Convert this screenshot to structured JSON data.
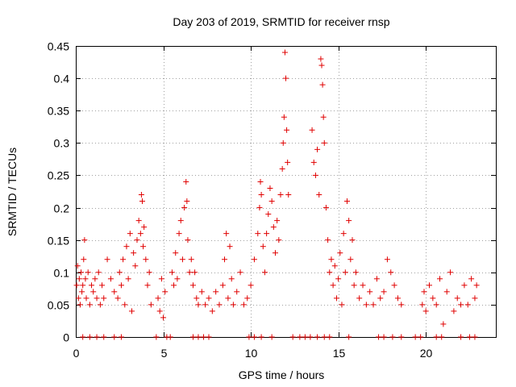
{
  "chart_data": {
    "type": "scatter",
    "title": "Day 203 of 2019, SRMTID for receiver rnsp",
    "xlabel": "GPS time / hours",
    "ylabel": "SRMTID / TECUs",
    "xlim": [
      0,
      24
    ],
    "ylim": [
      0,
      0.45
    ],
    "xticks": [
      0,
      5,
      10,
      15,
      20
    ],
    "xtick_labels": [
      "0",
      "5",
      "10",
      "15",
      "20"
    ],
    "yticks": [
      0,
      0.05,
      0.1,
      0.15,
      0.2,
      0.25,
      0.3,
      0.35,
      0.4,
      0.45
    ],
    "ytick_labels": [
      "0",
      "0.05",
      "0.1",
      "0.15",
      "0.2",
      "0.25",
      "0.3",
      "0.35",
      "0.4",
      "0.45"
    ],
    "grid": true,
    "marker": "+",
    "color": "#e00000",
    "series": [
      {
        "name": "SRMTID",
        "points": [
          [
            0.05,
            0.08
          ],
          [
            0.1,
            0.11
          ],
          [
            0.15,
            0.06
          ],
          [
            0.2,
            0.09
          ],
          [
            0.25,
            0.05
          ],
          [
            0.3,
            0.1
          ],
          [
            0.35,
            0.07
          ],
          [
            0.4,
            0.08
          ],
          [
            0.45,
            0.12
          ],
          [
            0.5,
            0.15
          ],
          [
            0.55,
            0.09
          ],
          [
            0.6,
            0.06
          ],
          [
            0.7,
            0.1
          ],
          [
            0.8,
            0.05
          ],
          [
            0.9,
            0.08
          ],
          [
            1.0,
            0.07
          ],
          [
            1.1,
            0.09
          ],
          [
            1.2,
            0.06
          ],
          [
            1.3,
            0.1
          ],
          [
            1.4,
            0.05
          ],
          [
            1.5,
            0.08
          ],
          [
            1.6,
            0.06
          ],
          [
            1.8,
            0.12
          ],
          [
            2.0,
            0.09
          ],
          [
            2.2,
            0.07
          ],
          [
            2.4,
            0.06
          ],
          [
            2.5,
            0.1
          ],
          [
            2.6,
            0.08
          ],
          [
            2.7,
            0.12
          ],
          [
            2.8,
            0.05
          ],
          [
            2.9,
            0.14
          ],
          [
            3.0,
            0.09
          ],
          [
            3.1,
            0.16
          ],
          [
            3.2,
            0.04
          ],
          [
            3.3,
            0.13
          ],
          [
            3.4,
            0.11
          ],
          [
            3.5,
            0.15
          ],
          [
            3.6,
            0.18
          ],
          [
            3.7,
            0.16
          ],
          [
            3.75,
            0.22
          ],
          [
            3.8,
            0.21
          ],
          [
            3.85,
            0.14
          ],
          [
            3.9,
            0.17
          ],
          [
            4.0,
            0.12
          ],
          [
            4.1,
            0.08
          ],
          [
            4.2,
            0.1
          ],
          [
            4.3,
            0.05
          ],
          [
            4.7,
            0.06
          ],
          [
            4.8,
            0.04
          ],
          [
            4.9,
            0.09
          ],
          [
            5.0,
            0.03
          ],
          [
            5.1,
            0.07
          ],
          [
            5.5,
            0.1
          ],
          [
            5.6,
            0.08
          ],
          [
            5.7,
            0.13
          ],
          [
            5.8,
            0.09
          ],
          [
            5.9,
            0.16
          ],
          [
            6.0,
            0.18
          ],
          [
            6.1,
            0.12
          ],
          [
            6.2,
            0.2
          ],
          [
            6.3,
            0.24
          ],
          [
            6.35,
            0.21
          ],
          [
            6.4,
            0.15
          ],
          [
            6.5,
            0.1
          ],
          [
            6.6,
            0.12
          ],
          [
            6.7,
            0.08
          ],
          [
            6.8,
            0.1
          ],
          [
            6.9,
            0.06
          ],
          [
            7.0,
            0.05
          ],
          [
            7.2,
            0.07
          ],
          [
            7.4,
            0.05
          ],
          [
            7.6,
            0.06
          ],
          [
            7.8,
            0.04
          ],
          [
            8.0,
            0.07
          ],
          [
            8.2,
            0.05
          ],
          [
            8.4,
            0.08
          ],
          [
            8.5,
            0.12
          ],
          [
            8.6,
            0.16
          ],
          [
            8.7,
            0.06
          ],
          [
            8.8,
            0.14
          ],
          [
            8.9,
            0.09
          ],
          [
            9.0,
            0.05
          ],
          [
            9.2,
            0.07
          ],
          [
            9.4,
            0.1
          ],
          [
            9.6,
            0.05
          ],
          [
            9.8,
            0.06
          ],
          [
            10.0,
            0.08
          ],
          [
            10.2,
            0.12
          ],
          [
            10.4,
            0.16
          ],
          [
            10.5,
            0.2
          ],
          [
            10.55,
            0.24
          ],
          [
            10.6,
            0.22
          ],
          [
            10.7,
            0.14
          ],
          [
            10.8,
            0.1
          ],
          [
            10.9,
            0.16
          ],
          [
            11.0,
            0.19
          ],
          [
            11.1,
            0.23
          ],
          [
            11.2,
            0.21
          ],
          [
            11.3,
            0.17
          ],
          [
            11.4,
            0.13
          ],
          [
            11.5,
            0.18
          ],
          [
            11.6,
            0.15
          ],
          [
            11.7,
            0.22
          ],
          [
            11.8,
            0.26
          ],
          [
            11.85,
            0.3
          ],
          [
            11.9,
            0.34
          ],
          [
            11.95,
            0.44
          ],
          [
            12.0,
            0.4
          ],
          [
            12.05,
            0.32
          ],
          [
            12.1,
            0.27
          ],
          [
            12.15,
            0.22
          ],
          [
            13.5,
            0.32
          ],
          [
            13.6,
            0.27
          ],
          [
            13.7,
            0.25
          ],
          [
            13.8,
            0.29
          ],
          [
            13.9,
            0.22
          ],
          [
            14.0,
            0.43
          ],
          [
            14.05,
            0.42
          ],
          [
            14.1,
            0.39
          ],
          [
            14.15,
            0.34
          ],
          [
            14.2,
            0.3
          ],
          [
            14.3,
            0.2
          ],
          [
            14.4,
            0.15
          ],
          [
            14.5,
            0.1
          ],
          [
            14.6,
            0.12
          ],
          [
            14.7,
            0.08
          ],
          [
            14.8,
            0.11
          ],
          [
            14.9,
            0.06
          ],
          [
            15.0,
            0.09
          ],
          [
            15.1,
            0.13
          ],
          [
            15.2,
            0.05
          ],
          [
            15.3,
            0.16
          ],
          [
            15.4,
            0.1
          ],
          [
            15.5,
            0.21
          ],
          [
            15.6,
            0.18
          ],
          [
            15.7,
            0.12
          ],
          [
            15.8,
            0.15
          ],
          [
            15.9,
            0.08
          ],
          [
            16.0,
            0.1
          ],
          [
            16.2,
            0.06
          ],
          [
            16.4,
            0.08
          ],
          [
            16.6,
            0.05
          ],
          [
            16.8,
            0.07
          ],
          [
            17.0,
            0.05
          ],
          [
            17.2,
            0.09
          ],
          [
            17.4,
            0.06
          ],
          [
            17.6,
            0.07
          ],
          [
            17.8,
            0.12
          ],
          [
            18.0,
            0.1
          ],
          [
            18.2,
            0.08
          ],
          [
            18.4,
            0.06
          ],
          [
            18.6,
            0.05
          ],
          [
            19.8,
            0.05
          ],
          [
            19.9,
            0.07
          ],
          [
            20.0,
            0.04
          ],
          [
            20.2,
            0.08
          ],
          [
            20.4,
            0.06
          ],
          [
            20.6,
            0.05
          ],
          [
            20.8,
            0.09
          ],
          [
            21.0,
            0.02
          ],
          [
            21.2,
            0.07
          ],
          [
            21.4,
            0.1
          ],
          [
            21.6,
            0.04
          ],
          [
            21.8,
            0.06
          ],
          [
            22.0,
            0.05
          ],
          [
            22.2,
            0.08
          ],
          [
            22.4,
            0.05
          ],
          [
            22.6,
            0.09
          ],
          [
            22.8,
            0.06
          ],
          [
            22.9,
            0.08
          ]
        ]
      }
    ],
    "zero_markers_hours": [
      0.4,
      0.8,
      1.2,
      1.6,
      2.2,
      2.6,
      4.6,
      5.2,
      5.4,
      6.7,
      7.0,
      7.3,
      7.6,
      9.9,
      10.2,
      10.6,
      11.2,
      12.4,
      12.8,
      13.1,
      13.4,
      13.8,
      14.2,
      14.5,
      15.6,
      17.3,
      17.6,
      18.1,
      18.6,
      19.4,
      19.7,
      20.6,
      20.9,
      22.0,
      22.5,
      22.8
    ]
  }
}
